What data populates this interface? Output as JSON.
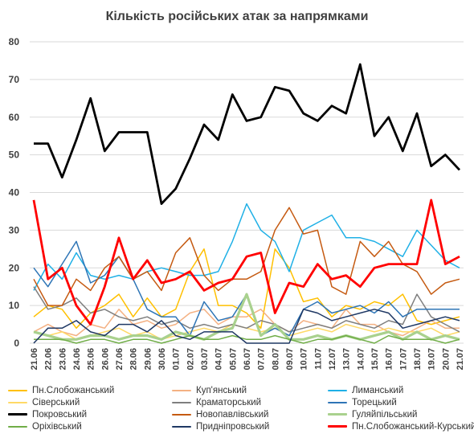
{
  "chart_data": {
    "type": "line",
    "title": "Кількість російських атак за напрямками",
    "ylim": [
      0,
      80
    ],
    "y_ticks": [
      0,
      10,
      20,
      30,
      40,
      50,
      60,
      70,
      80
    ],
    "grid": "horizontal",
    "legend_position": "bottom",
    "categories": [
      "21.06",
      "22.06",
      "23.06",
      "24.06",
      "25.06",
      "26.06",
      "27.06",
      "28.06",
      "29.06",
      "30.06",
      "01.07",
      "02.07",
      "03.07",
      "04.07",
      "05.07",
      "06.07",
      "07.07",
      "08.07",
      "09.07",
      "10.07",
      "11.07",
      "12.07",
      "13.07",
      "14.07",
      "15.07",
      "16.07",
      "17.07",
      "18.07",
      "19.07",
      "20.07",
      "21.07"
    ],
    "series": [
      {
        "name": "Пн.Слобожанський",
        "color": "#ffc000",
        "values": [
          7,
          10,
          9,
          4,
          8,
          10,
          13,
          7,
          12,
          7,
          9,
          19,
          25,
          10,
          10,
          8,
          4,
          25,
          20,
          11,
          12,
          7,
          10,
          9,
          11,
          10,
          13,
          6,
          5,
          6,
          7
        ]
      },
      {
        "name": "Куп'янський",
        "color": "#f4b183",
        "values": [
          3,
          5,
          3,
          2,
          5,
          4,
          9,
          5,
          6,
          4,
          5,
          8,
          9,
          5,
          7,
          7,
          9,
          5,
          3,
          6,
          5,
          4,
          9,
          5,
          5,
          3,
          2,
          4,
          6,
          4,
          4
        ]
      },
      {
        "name": "Лиманський",
        "color": "#1fb0e6",
        "values": [
          14,
          21,
          17,
          24,
          18,
          17,
          18,
          17,
          19,
          20,
          19,
          18,
          18,
          19,
          27,
          37,
          30,
          27,
          19,
          30,
          32,
          34,
          28,
          28,
          27,
          25,
          23,
          30,
          26,
          22,
          20
        ]
      },
      {
        "name": "Сіверський",
        "color": "#ffd966",
        "values": [
          3,
          2,
          3,
          1,
          2,
          3,
          4,
          2,
          3,
          1,
          2,
          3,
          4,
          3,
          5,
          4,
          3,
          4,
          2,
          3,
          4,
          3,
          5,
          4,
          3,
          4,
          3,
          3,
          4,
          2,
          3
        ]
      },
      {
        "name": "Краматорський",
        "color": "#7f7f7f",
        "values": [
          15,
          9,
          10,
          12,
          8,
          9,
          7,
          6,
          7,
          5,
          6,
          4,
          5,
          4,
          5,
          4,
          6,
          5,
          3,
          4,
          5,
          4,
          6,
          5,
          4,
          6,
          5,
          13,
          7,
          5,
          3
        ]
      },
      {
        "name": "Торецький",
        "color": "#2e75b6",
        "values": [
          20,
          15,
          21,
          27,
          16,
          18,
          23,
          17,
          9,
          7,
          7,
          2,
          11,
          6,
          7,
          13,
          2,
          4,
          2,
          9,
          11,
          8,
          9,
          10,
          8,
          11,
          7,
          9,
          9,
          9,
          9
        ]
      },
      {
        "name": "Покровський",
        "color": "#000000",
        "values": [
          53,
          53,
          44,
          54,
          65,
          51,
          56,
          56,
          56,
          37,
          41,
          49,
          58,
          54,
          66,
          59,
          60,
          68,
          67,
          61,
          59,
          63,
          61,
          74,
          55,
          60,
          51,
          61,
          47,
          50,
          46
        ]
      },
      {
        "name": "Новопавлівський",
        "color": "#c55a11",
        "values": [
          17,
          10,
          10,
          17,
          14,
          20,
          23,
          17,
          19,
          14,
          24,
          28,
          18,
          14,
          17,
          17,
          19,
          30,
          36,
          29,
          30,
          15,
          13,
          27,
          23,
          27,
          21,
          19,
          13,
          16,
          17
        ]
      },
      {
        "name": "Гуляйпільський",
        "color": "#a9d18e",
        "values": [
          3,
          2,
          1,
          1,
          2,
          2,
          1,
          2,
          2,
          1,
          3,
          2,
          1,
          3,
          4,
          13,
          2,
          5,
          1,
          1,
          2,
          1,
          2,
          1,
          2,
          3,
          1,
          3,
          1,
          2,
          1
        ]
      },
      {
        "name": "Оріхівський",
        "color": "#70ad47",
        "values": [
          1,
          1,
          1,
          0,
          1,
          1,
          0,
          1,
          1,
          0,
          1,
          2,
          1,
          1,
          2,
          1,
          1,
          2,
          1,
          0,
          1,
          1,
          2,
          1,
          0,
          2,
          1,
          1,
          1,
          0,
          1
        ]
      },
      {
        "name": "Придніпровський",
        "color": "#1f3864",
        "values": [
          0,
          4,
          4,
          6,
          3,
          2,
          5,
          5,
          3,
          6,
          2,
          1,
          3,
          3,
          3,
          0,
          0,
          0,
          0,
          9,
          8,
          6,
          7,
          8,
          9,
          8,
          4,
          5,
          6,
          7,
          6
        ]
      },
      {
        "name": "Пн.Слобожанський-Курський",
        "color": "#ff0000",
        "values": [
          38,
          17,
          20,
          10,
          5,
          15,
          28,
          17,
          22,
          16,
          17,
          19,
          14,
          16,
          17,
          23,
          24,
          8,
          16,
          15,
          21,
          17,
          18,
          15,
          20,
          21,
          21,
          21,
          38,
          21,
          23
        ]
      }
    ]
  }
}
